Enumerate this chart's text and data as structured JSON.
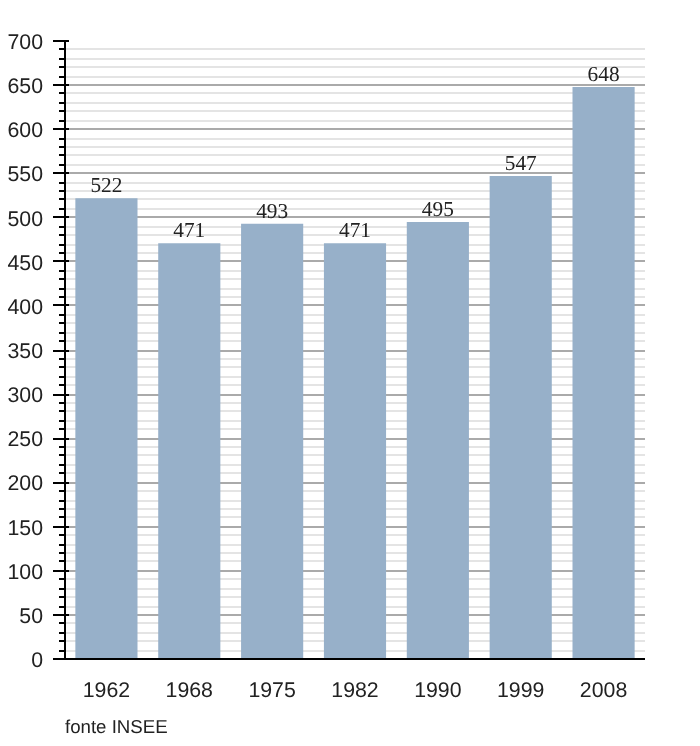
{
  "chart_data": {
    "type": "bar",
    "categories": [
      "1962",
      "1968",
      "1975",
      "1982",
      "1990",
      "1999",
      "2008"
    ],
    "values": [
      522,
      471,
      493,
      471,
      495,
      547,
      648
    ],
    "color": "#97b0c9",
    "ylim": [
      0,
      700
    ],
    "yticks": [
      0,
      50,
      100,
      150,
      200,
      250,
      300,
      350,
      400,
      450,
      500,
      550,
      600,
      650,
      700
    ],
    "grid": "y",
    "data_labels": true,
    "annotations": [
      "fonte INSEE"
    ]
  }
}
